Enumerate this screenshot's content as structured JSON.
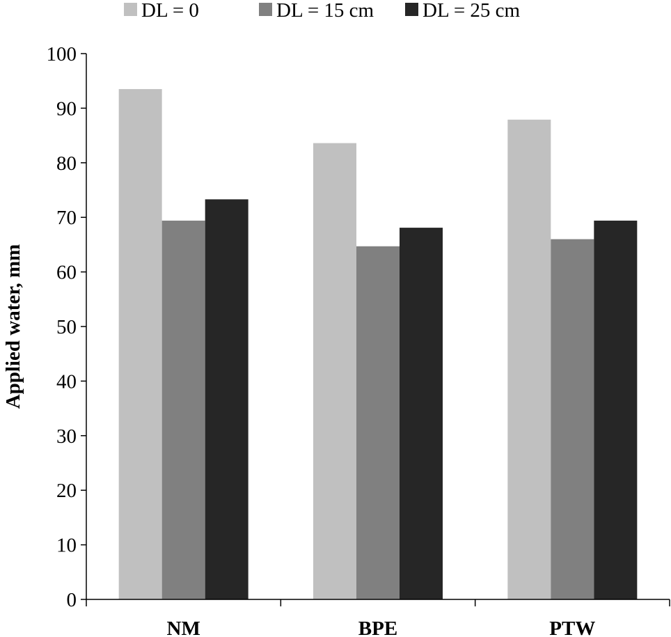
{
  "chart_data": {
    "type": "bar",
    "categories": [
      "NM",
      "BPE",
      "PTW"
    ],
    "series": [
      {
        "name": "DL = 0",
        "color": "#c0c0c0",
        "values": [
          93.5,
          83.6,
          87.9
        ]
      },
      {
        "name": "DL = 15 cm",
        "color": "#808080",
        "values": [
          69.4,
          64.7,
          66.0
        ]
      },
      {
        "name": "DL = 25 cm",
        "color": "#262626",
        "values": [
          73.3,
          68.1,
          69.4
        ]
      }
    ],
    "title": "",
    "xlabel": "",
    "ylabel": "Applied water, mm",
    "ylim": [
      0,
      100
    ],
    "yticks": [
      "0",
      "10",
      "20",
      "30",
      "40",
      "50",
      "60",
      "70",
      "80",
      "90",
      "100"
    ],
    "grid": false,
    "legend_position": "top"
  }
}
